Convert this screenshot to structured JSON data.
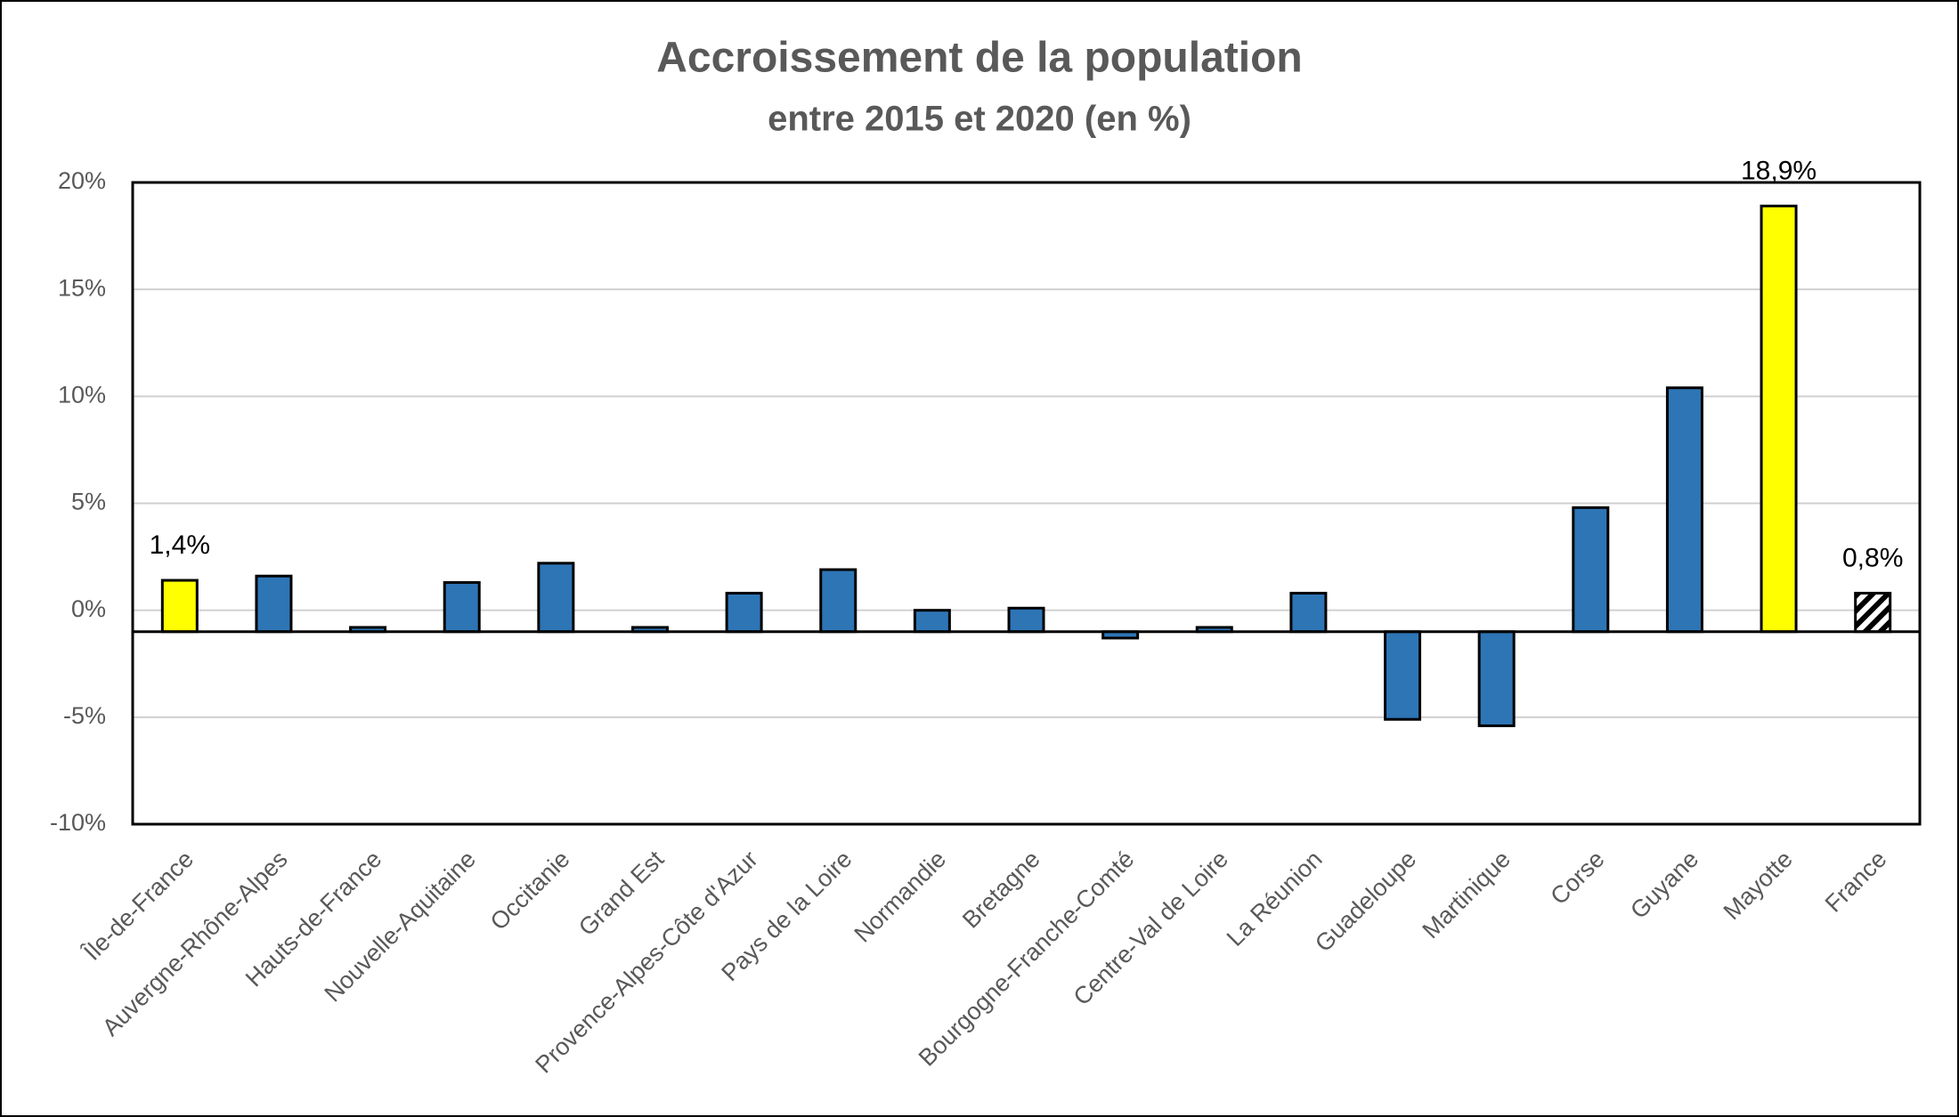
{
  "chart_data": {
    "type": "bar",
    "title": "Accroissement de la population",
    "subtitle": "entre 2015 et 2020 (en %)",
    "categories": [
      "Île-de-France",
      "Auvergne-Rhône-Alpes",
      "Hauts-de-France",
      "Nouvelle-Aquitaine",
      "Occitanie",
      "Grand Est",
      "Provence-Alpes-Côte d'Azur",
      "Pays de la Loire",
      "Normandie",
      "Bretagne",
      "Bourgogne-Franche-Comté",
      "Centre-Val de Loire",
      "La Réunion",
      "Guadeloupe",
      "Martinique",
      "Corse",
      "Guyane",
      "Mayotte",
      "France"
    ],
    "values": [
      1.4,
      1.6,
      -0.8,
      1.3,
      2.2,
      -0.8,
      0.8,
      1.9,
      0.0,
      0.1,
      -1.3,
      -0.8,
      0.8,
      -5.1,
      -5.4,
      4.8,
      10.4,
      18.9,
      0.8
    ],
    "value_labels": [
      "1,4%",
      null,
      null,
      null,
      null,
      null,
      null,
      null,
      null,
      null,
      null,
      null,
      null,
      null,
      null,
      null,
      null,
      "18,9%",
      "0,8%"
    ],
    "colors": [
      "#ffff00",
      "#2e75b6",
      "#2e75b6",
      "#2e75b6",
      "#2e75b6",
      "#2e75b6",
      "#2e75b6",
      "#2e75b6",
      "#2e75b6",
      "#2e75b6",
      "#2e75b6",
      "#2e75b6",
      "#2e75b6",
      "#2e75b6",
      "#2e75b6",
      "#2e75b6",
      "#2e75b6",
      "#ffff00",
      "hatch"
    ],
    "ylim": [
      -10,
      20
    ],
    "yticks": [
      {
        "value": -10,
        "label": "-10%"
      },
      {
        "value": -5,
        "label": "-5%"
      },
      {
        "value": 0,
        "label": "0%"
      },
      {
        "value": 5,
        "label": "5%"
      },
      {
        "value": 10,
        "label": "10%"
      },
      {
        "value": 15,
        "label": "15%"
      },
      {
        "value": 20,
        "label": "20%"
      }
    ],
    "xaxis_crosses_at": -1,
    "grid": true
  }
}
